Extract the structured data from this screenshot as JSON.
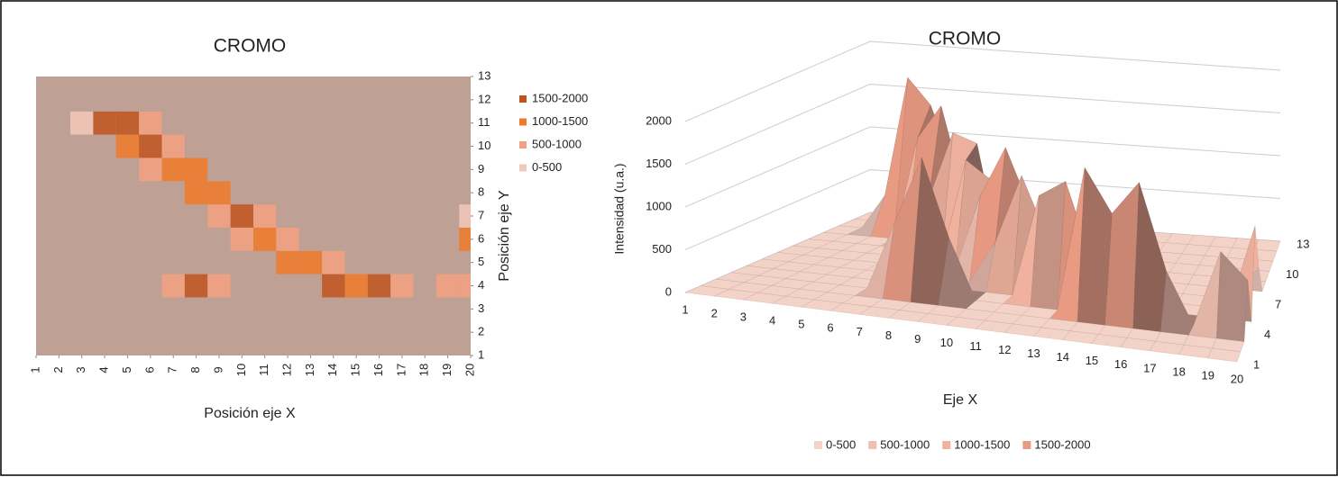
{
  "chart_data": [
    {
      "type": "contour",
      "title": "CROMO",
      "x_label": "Posición eje X",
      "y_label": "Posición eje Y",
      "xticks": [
        1,
        2,
        3,
        4,
        5,
        6,
        7,
        8,
        9,
        10,
        11,
        12,
        13,
        14,
        15,
        16,
        17,
        18,
        19,
        20
      ],
      "yticks": [
        1,
        2,
        3,
        4,
        5,
        6,
        7,
        8,
        9,
        10,
        11,
        12,
        13
      ],
      "xlim": [
        1,
        20
      ],
      "ylim": [
        1,
        13
      ],
      "plot_color": "#bfa094",
      "levels": [
        2000,
        1500,
        1000,
        500,
        0
      ],
      "legend": [
        {
          "label": "1500-2000",
          "color": "#c0541e"
        },
        {
          "label": "1000-1500",
          "color": "#f07a2a"
        },
        {
          "label": "500-1000",
          "color": "#f3a182"
        },
        {
          "label": "0-500",
          "color": "#f2c8ba"
        }
      ],
      "z": [
        [
          0,
          0,
          0,
          0,
          0,
          0,
          0,
          0,
          0,
          0,
          0,
          0,
          0,
          0,
          0,
          0,
          0,
          0,
          0,
          0
        ],
        [
          0,
          0,
          0,
          0,
          0,
          0,
          0,
          0,
          0,
          0,
          0,
          0,
          0,
          0,
          0,
          0,
          0,
          0,
          0,
          0
        ],
        [
          0,
          0,
          0,
          0,
          0,
          0,
          0,
          0,
          0,
          0,
          0,
          0,
          0,
          0,
          0,
          0,
          0,
          0,
          0,
          0
        ],
        [
          0,
          0,
          0,
          0,
          0,
          0,
          800,
          1600,
          700,
          0,
          0,
          0,
          0,
          1700,
          1200,
          1600,
          600,
          0,
          900,
          600
        ],
        [
          0,
          0,
          0,
          0,
          0,
          0,
          0,
          0,
          0,
          0,
          0,
          1200,
          1400,
          500,
          0,
          0,
          0,
          0,
          0,
          0
        ],
        [
          0,
          0,
          0,
          0,
          0,
          0,
          0,
          0,
          0,
          500,
          1300,
          600,
          0,
          0,
          0,
          0,
          0,
          0,
          0,
          1000
        ],
        [
          0,
          0,
          0,
          0,
          0,
          0,
          0,
          0,
          900,
          1500,
          800,
          0,
          0,
          0,
          0,
          0,
          0,
          0,
          0,
          400
        ],
        [
          0,
          0,
          0,
          0,
          0,
          0,
          0,
          1200,
          1000,
          0,
          0,
          0,
          0,
          0,
          0,
          0,
          0,
          0,
          0,
          0
        ],
        [
          0,
          0,
          0,
          0,
          0,
          600,
          1400,
          1300,
          0,
          0,
          0,
          0,
          0,
          0,
          0,
          0,
          0,
          0,
          0,
          0
        ],
        [
          0,
          0,
          0,
          0,
          1200,
          1600,
          600,
          0,
          0,
          0,
          0,
          0,
          0,
          0,
          0,
          0,
          0,
          0,
          0,
          0
        ],
        [
          0,
          0,
          400,
          1800,
          1500,
          800,
          0,
          0,
          0,
          0,
          0,
          0,
          0,
          0,
          0,
          0,
          0,
          0,
          0,
          0
        ],
        [
          0,
          0,
          0,
          0,
          0,
          0,
          0,
          0,
          0,
          0,
          0,
          0,
          0,
          0,
          0,
          0,
          0,
          0,
          0,
          0
        ],
        [
          0,
          0,
          0,
          0,
          0,
          0,
          0,
          0,
          0,
          0,
          0,
          0,
          0,
          0,
          0,
          0,
          0,
          0,
          0,
          0
        ]
      ]
    },
    {
      "type": "surface3d",
      "title": "CROMO",
      "x_label": "Eje X",
      "z_label": "Intensidad (u.a.)",
      "xticks": [
        1,
        2,
        3,
        4,
        5,
        6,
        7,
        8,
        9,
        10,
        11,
        12,
        13,
        14,
        15,
        16,
        17,
        18,
        19,
        20
      ],
      "yticks": [
        1,
        4,
        7,
        10,
        13
      ],
      "xlim": [
        1,
        20
      ],
      "ylim": [
        1,
        13
      ],
      "zlim": [
        0,
        2000
      ],
      "zticks": [
        0,
        500,
        1000,
        1500,
        2000
      ],
      "levels": [
        0,
        500,
        1000,
        1500,
        2000
      ],
      "legend": [
        {
          "label": "0-500",
          "color": "#f3d2c8"
        },
        {
          "label": "500-1000",
          "color": "#efbfb0"
        },
        {
          "label": "1000-1500",
          "color": "#f0b29e"
        },
        {
          "label": "1500-2000",
          "color": "#e99a82"
        }
      ],
      "z": [
        [
          0,
          0,
          0,
          0,
          0,
          0,
          0,
          0,
          0,
          0,
          0,
          0,
          0,
          0,
          0,
          0,
          0,
          0,
          0,
          0
        ],
        [
          0,
          0,
          0,
          0,
          0,
          0,
          0,
          0,
          0,
          0,
          0,
          0,
          0,
          0,
          0,
          0,
          0,
          0,
          0,
          0
        ],
        [
          0,
          0,
          0,
          0,
          0,
          0,
          0,
          0,
          0,
          0,
          0,
          0,
          0,
          0,
          0,
          0,
          0,
          0,
          0,
          0
        ],
        [
          0,
          0,
          0,
          0,
          0,
          0,
          800,
          1600,
          700,
          0,
          0,
          0,
          0,
          1700,
          1200,
          1600,
          600,
          0,
          900,
          600
        ],
        [
          0,
          0,
          0,
          0,
          0,
          0,
          0,
          0,
          0,
          0,
          0,
          1200,
          1400,
          500,
          0,
          0,
          0,
          0,
          0,
          0
        ],
        [
          0,
          0,
          0,
          0,
          0,
          0,
          0,
          0,
          0,
          500,
          1300,
          600,
          0,
          0,
          0,
          0,
          0,
          0,
          0,
          1000
        ],
        [
          0,
          0,
          0,
          0,
          0,
          0,
          0,
          0,
          900,
          1500,
          800,
          0,
          0,
          0,
          0,
          0,
          0,
          0,
          0,
          400
        ],
        [
          0,
          0,
          0,
          0,
          0,
          0,
          0,
          1200,
          1000,
          0,
          0,
          0,
          0,
          0,
          0,
          0,
          0,
          0,
          0,
          0
        ],
        [
          0,
          0,
          0,
          0,
          0,
          600,
          1400,
          1300,
          0,
          0,
          0,
          0,
          0,
          0,
          0,
          0,
          0,
          0,
          0,
          0
        ],
        [
          0,
          0,
          0,
          0,
          1200,
          1600,
          600,
          0,
          0,
          0,
          0,
          0,
          0,
          0,
          0,
          0,
          0,
          0,
          0,
          0
        ],
        [
          0,
          0,
          400,
          1800,
          1500,
          800,
          0,
          0,
          0,
          0,
          0,
          0,
          0,
          0,
          0,
          0,
          0,
          0,
          0,
          0
        ],
        [
          0,
          0,
          0,
          0,
          0,
          0,
          0,
          0,
          0,
          0,
          0,
          0,
          0,
          0,
          0,
          0,
          0,
          0,
          0,
          0
        ],
        [
          0,
          0,
          0,
          0,
          0,
          0,
          0,
          0,
          0,
          0,
          0,
          0,
          0,
          0,
          0,
          0,
          0,
          0,
          0,
          0
        ]
      ]
    }
  ]
}
